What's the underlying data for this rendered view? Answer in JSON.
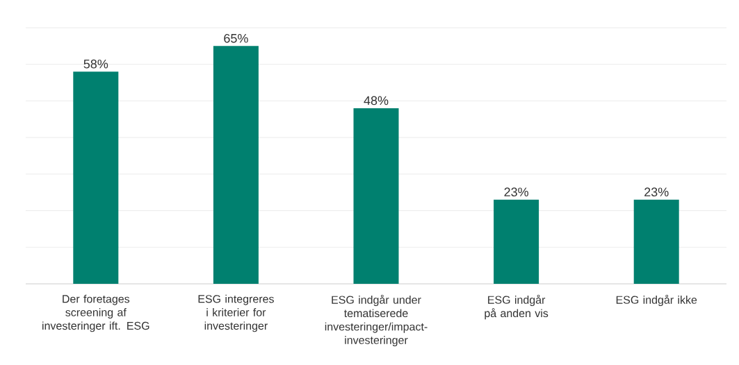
{
  "chart_data": {
    "type": "bar",
    "categories": [
      "Der foretages screening af investeringer ift. ESG",
      "ESG integreres i kriterier for investeringer",
      "ESG indgår under tematiserede investeringer/impact-investeringer",
      "ESG indgår på anden vis",
      "ESG indgår ikke"
    ],
    "values": [
      58,
      65,
      48,
      23,
      23
    ],
    "value_labels": [
      "58%",
      "65%",
      "48%",
      "23%",
      "23%"
    ],
    "color": "#00806f",
    "ylim": [
      0,
      70
    ],
    "yticks": [
      {
        "value": 0,
        "label": null
      },
      {
        "value": 10,
        "label": null
      },
      {
        "value": 20,
        "label": null
      },
      {
        "value": 30,
        "label": null
      },
      {
        "value": 40,
        "label": null
      },
      {
        "value": 50,
        "label": null
      },
      {
        "value": 60,
        "label": null
      },
      {
        "value": 70,
        "label": null
      }
    ],
    "grid": "y",
    "tick_labels": "x"
  }
}
